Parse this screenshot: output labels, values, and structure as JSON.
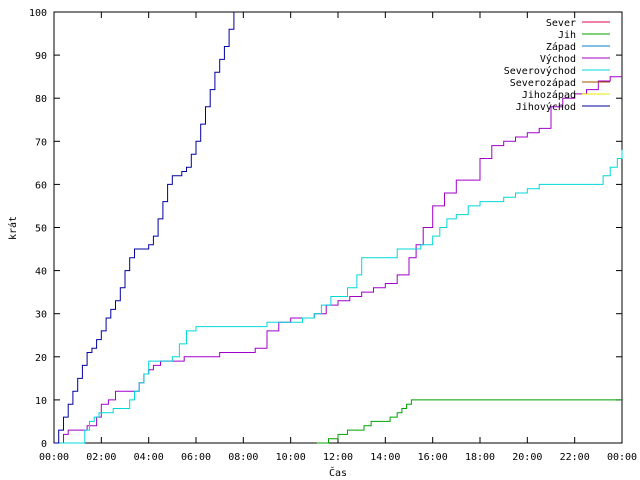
{
  "chart_data": {
    "type": "line",
    "title": "",
    "xlabel": "Čas",
    "ylabel": "krát",
    "xlim": [
      0,
      24
    ],
    "ylim": [
      0,
      100
    ],
    "x_ticks": [
      {
        "value": 0,
        "label": "00:00"
      },
      {
        "value": 2,
        "label": "02:00"
      },
      {
        "value": 4,
        "label": "04:00"
      },
      {
        "value": 6,
        "label": "06:00"
      },
      {
        "value": 8,
        "label": "08:00"
      },
      {
        "value": 10,
        "label": "10:00"
      },
      {
        "value": 12,
        "label": "12:00"
      },
      {
        "value": 14,
        "label": "14:00"
      },
      {
        "value": 16,
        "label": "16:00"
      },
      {
        "value": 18,
        "label": "18:00"
      },
      {
        "value": 20,
        "label": "20:00"
      },
      {
        "value": 22,
        "label": "22:00"
      },
      {
        "value": 24,
        "label": "00:00"
      }
    ],
    "y_ticks": [
      0,
      10,
      20,
      30,
      40,
      50,
      60,
      70,
      80,
      90,
      100
    ],
    "grid": false,
    "legend_position": "top-right",
    "series": [
      {
        "name": "Sever",
        "color": "#e0004c",
        "x": [],
        "y": []
      },
      {
        "name": "Jih",
        "color": "#00a000",
        "x": [
          11.1,
          11.6,
          12.0,
          12.4,
          12.8,
          13.1,
          13.4,
          13.8,
          14.2,
          14.5,
          14.7,
          14.9,
          15.1,
          18,
          24
        ],
        "y": [
          0,
          1,
          2,
          3,
          3,
          4,
          5,
          5,
          6,
          7,
          8,
          9,
          10,
          10,
          10
        ]
      },
      {
        "name": "Západ",
        "color": "#0080c0",
        "x": [],
        "y": []
      },
      {
        "name": "Východ",
        "color": "#a000c8",
        "x": [
          0,
          0.4,
          0.6,
          1.0,
          1.4,
          1.8,
          2.0,
          2.3,
          2.6,
          3.0,
          3.4,
          3.6,
          3.8,
          4.0,
          4.2,
          4.5,
          5.0,
          5.5,
          6.0,
          6.5,
          7.0,
          8.0,
          8.5,
          9.0,
          9.5,
          10.0,
          10.5,
          11.0,
          11.5,
          12.0,
          12.5,
          13.0,
          13.5,
          14.0,
          14.5,
          15.0,
          15.3,
          15.6,
          16.0,
          16.5,
          17.0,
          17.5,
          18.0,
          18.5,
          19.0,
          19.5,
          20.0,
          20.5,
          21.0,
          21.5,
          22.0,
          22.5,
          23.0,
          23.5,
          24.0
        ],
        "y": [
          0,
          2,
          3,
          3,
          4,
          6,
          9,
          10,
          12,
          12,
          12,
          14,
          16,
          17,
          18,
          19,
          19,
          20,
          20,
          20,
          21,
          21,
          22,
          26,
          28,
          29,
          29,
          30,
          32,
          33,
          34,
          35,
          36,
          37,
          39,
          43,
          46,
          50,
          55,
          58,
          61,
          61,
          66,
          69,
          70,
          71,
          72,
          73,
          78,
          80,
          81,
          82,
          84,
          85,
          85
        ]
      },
      {
        "name": "Severovýchod",
        "color": "#00d8d8",
        "x": [
          0,
          1.1,
          1.3,
          1.5,
          1.7,
          1.9,
          2.1,
          2.5,
          3.0,
          3.2,
          3.4,
          3.6,
          3.8,
          4.0,
          4.5,
          5.0,
          5.3,
          5.6,
          6.0,
          6.5,
          7.0,
          8.5,
          9.0,
          9.5,
          10.0,
          10.5,
          11.0,
          11.3,
          11.7,
          12.0,
          12.4,
          12.8,
          13.0,
          13.5,
          14.0,
          14.5,
          15.0,
          15.5,
          16.0,
          16.3,
          16.6,
          17.0,
          17.5,
          18.0,
          18.5,
          19.0,
          19.5,
          20.0,
          20.5,
          21.0,
          22.0,
          22.5,
          22.9,
          23.2,
          23.5,
          23.8,
          24.0
        ],
        "y": [
          0,
          0,
          3,
          5,
          6,
          7,
          7,
          8,
          8,
          10,
          12,
          14,
          16,
          19,
          19,
          20,
          23,
          26,
          27,
          27,
          27,
          27,
          28,
          28,
          28,
          29,
          30,
          32,
          34,
          34,
          36,
          39,
          43,
          43,
          43,
          45,
          45,
          46,
          48,
          50,
          52,
          53,
          55,
          56,
          56,
          57,
          58,
          59,
          60,
          60,
          60,
          60,
          60,
          62,
          64,
          66,
          68
        ]
      },
      {
        "name": "Severozápad",
        "color": "#a05000",
        "x": [],
        "y": []
      },
      {
        "name": "Jihozápad",
        "color": "#e8e800",
        "x": [],
        "y": []
      },
      {
        "name": "Jihovýchod",
        "color": "#0000a0",
        "x": [
          0,
          0.2,
          0.4,
          0.6,
          0.8,
          1.0,
          1.2,
          1.4,
          1.6,
          1.8,
          2.0,
          2.2,
          2.4,
          2.6,
          2.8,
          3.0,
          3.2,
          3.4,
          3.6,
          3.8,
          4.0,
          4.2,
          4.4,
          4.6,
          4.8,
          5.0,
          5.2,
          5.4,
          5.6,
          5.8,
          6.0,
          6.2,
          6.4,
          6.6,
          6.8,
          7.0,
          7.2,
          7.4,
          7.6
        ],
        "y": [
          0,
          3,
          6,
          9,
          12,
          15,
          18,
          21,
          22,
          24,
          26,
          29,
          31,
          33,
          36,
          40,
          43,
          45,
          45,
          45,
          46,
          48,
          52,
          56,
          60,
          62,
          62,
          63,
          64,
          67,
          70,
          74,
          78,
          82,
          86,
          89,
          92,
          96,
          100
        ]
      }
    ]
  }
}
